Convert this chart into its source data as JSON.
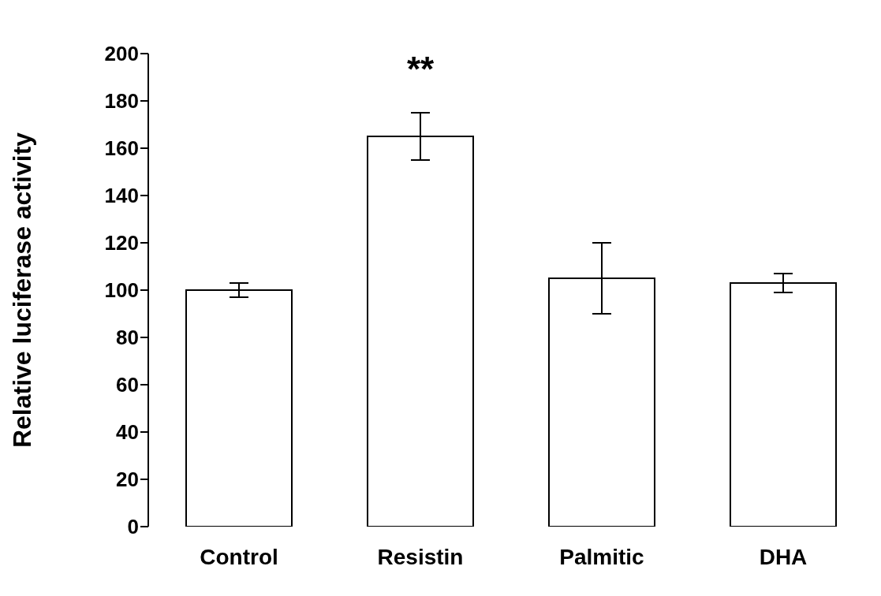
{
  "chart_data": {
    "type": "bar",
    "ylabel": "Relative luciferase activity",
    "categories": [
      "Control",
      "Resistin",
      "Palmitic",
      "DHA"
    ],
    "values": [
      100,
      165,
      105,
      103
    ],
    "errors": [
      3,
      10,
      15,
      4
    ],
    "color": "#ffffff",
    "ylim": [
      0,
      200
    ],
    "yticks": [
      0,
      20,
      40,
      60,
      80,
      100,
      120,
      140,
      160,
      180,
      200
    ],
    "grid": false,
    "legend": false,
    "annotations": [
      "**"
    ]
  }
}
